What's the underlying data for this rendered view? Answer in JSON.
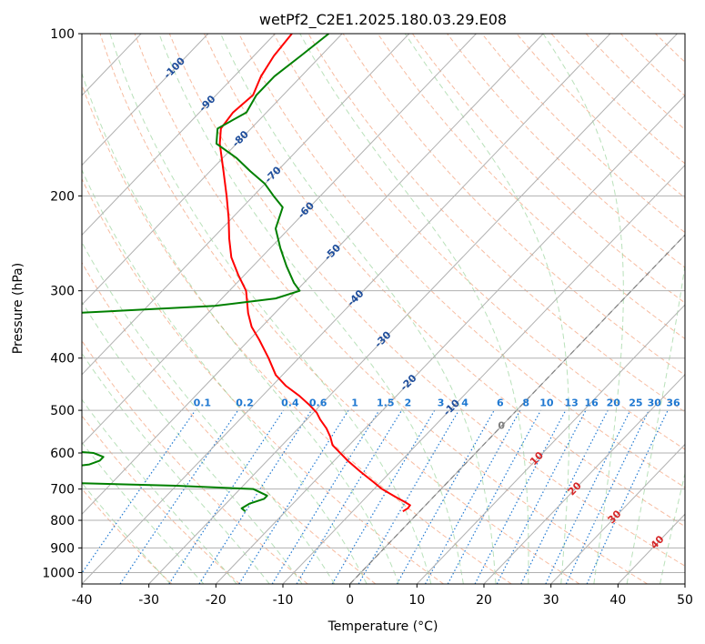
{
  "chart_data": {
    "type": "line",
    "subtype": "skew-t log-p diagram",
    "title": "wetPf2_C2E1.2025.180.03.29.E08",
    "xlabel": "Temperature (°C)",
    "ylabel": "Pressure (hPa)",
    "xlim": [
      -40,
      50
    ],
    "ylim": [
      1050,
      100
    ],
    "y_scale": "log",
    "grid": true,
    "x_ticks": [
      -40,
      -30,
      -20,
      -10,
      0,
      10,
      20,
      30,
      40,
      50
    ],
    "y_ticks": [
      1000,
      900,
      800,
      700,
      600,
      500,
      400,
      300,
      200,
      100
    ],
    "isotherm_labels": [
      -100,
      -90,
      -80,
      -70,
      -60,
      -50,
      -40,
      -30,
      -20,
      -10
    ],
    "freezing_label": "0",
    "moist_adiabat_labels": [
      10,
      20,
      30,
      40
    ],
    "mixing_ratio_labels": [
      "0.1",
      "0.2",
      "0.4",
      "0.6",
      "1",
      "1.5",
      "2",
      "3",
      "4",
      "6",
      "8",
      "10",
      "13",
      "16",
      "20",
      "25",
      "30",
      "36"
    ],
    "series": [
      {
        "role": "temperature",
        "color": "#ff0000",
        "p": [
          770,
          760,
          750,
          740,
          725,
          700,
          680,
          650,
          620,
          600,
          580,
          560,
          540,
          520,
          505,
          490,
          470,
          450,
          430,
          400,
          370,
          350,
          330,
          300,
          280,
          260,
          240,
          220,
          200,
          180,
          160,
          150,
          140,
          130,
          120,
          110,
          100
        ],
        "t": [
          -2.5,
          -2.2,
          -2.3,
          -3.5,
          -5.5,
          -8.8,
          -11.0,
          -14.5,
          -18.0,
          -20.2,
          -22.5,
          -24.0,
          -25.8,
          -28.0,
          -29.5,
          -31.5,
          -34.5,
          -38.0,
          -41.0,
          -44.5,
          -48.5,
          -51.5,
          -54.0,
          -57.5,
          -61.0,
          -64.5,
          -67.5,
          -70.5,
          -74.0,
          -78.0,
          -82.5,
          -84.5,
          -85.0,
          -84.5,
          -86.0,
          -87.0,
          -87.5
        ]
      },
      {
        "role": "dewpoint",
        "color": "#008000",
        "p": [
          770,
          760,
          745,
          730,
          720,
          700,
          690,
          680,
          670,
          660,
          655,
          650,
          645,
          640,
          630,
          620,
          610,
          600,
          595,
          590,
          585,
          580,
          575,
          570,
          560,
          540,
          520,
          505,
          495,
          485,
          475,
          465,
          455,
          440,
          420,
          400,
          380,
          360,
          340,
          330,
          325,
          320,
          310,
          300,
          290,
          270,
          250,
          230,
          210,
          200,
          190,
          180,
          170,
          160,
          150,
          140,
          130,
          120,
          110,
          100
        ],
        "t": [
          -26.0,
          -27.0,
          -26.5,
          -25.0,
          -25.0,
          -28.0,
          -40.0,
          -60.0,
          -66.0,
          -68.0,
          -68.5,
          -69.0,
          -65.0,
          -60.0,
          -56.0,
          -55.0,
          -55.0,
          -57.0,
          -61.0,
          -65.0,
          -68.0,
          -70.0,
          -72.0,
          -75.0,
          -79.0,
          -82.0,
          -80.0,
          -73.0,
          -66.0,
          -68.0,
          -76.0,
          -78.0,
          -78.0,
          -78.0,
          -79.0,
          -80.0,
          -80.0,
          -80.0,
          -81.0,
          -80.0,
          -70.0,
          -60.0,
          -52.0,
          -49.5,
          -51.5,
          -55.0,
          -58.5,
          -62.0,
          -64.0,
          -67.0,
          -70.0,
          -74.0,
          -78.0,
          -83.0,
          -85.0,
          -83.0,
          -84.0,
          -84.0,
          -83.0,
          -82.0
        ]
      }
    ]
  },
  "colors": {
    "grid": "#b0b0b0",
    "dry_adiabat": "#f4a582",
    "moist_adiabat": "#74c476",
    "mixing_ratio": "#1f78d1",
    "isotherm_label": "#1f4e9c",
    "moist_label": "#d62728",
    "zero_line": "#808080"
  }
}
